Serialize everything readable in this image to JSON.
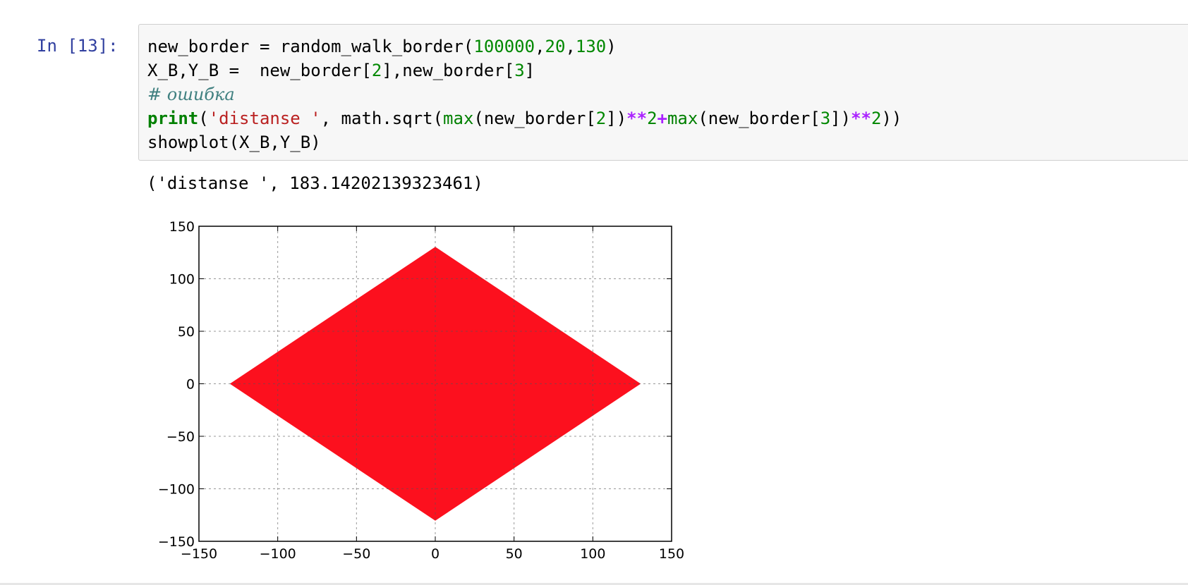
{
  "cell": {
    "prompt": "In [13]:",
    "code_lines": [
      [
        {
          "t": "new_border = random_walk_border(",
          "c": ""
        },
        {
          "t": "100000",
          "c": "num"
        },
        {
          "t": ",",
          "c": ""
        },
        {
          "t": "20",
          "c": "num"
        },
        {
          "t": ",",
          "c": ""
        },
        {
          "t": "130",
          "c": "num"
        },
        {
          "t": ")",
          "c": ""
        }
      ],
      [
        {
          "t": "X_B,Y_B =  new_border[",
          "c": ""
        },
        {
          "t": "2",
          "c": "num"
        },
        {
          "t": "],new_border[",
          "c": ""
        },
        {
          "t": "3",
          "c": "num"
        },
        {
          "t": "]",
          "c": ""
        }
      ],
      [
        {
          "t": "# ошибка",
          "c": "comment"
        }
      ],
      [
        {
          "t": "print",
          "c": "kw"
        },
        {
          "t": "(",
          "c": ""
        },
        {
          "t": "'distanse '",
          "c": "str"
        },
        {
          "t": ", math.sqrt(",
          "c": ""
        },
        {
          "t": "max",
          "c": "builtin"
        },
        {
          "t": "(new_border[",
          "c": ""
        },
        {
          "t": "2",
          "c": "num"
        },
        {
          "t": "])",
          "c": ""
        },
        {
          "t": "**",
          "c": "op"
        },
        {
          "t": "2",
          "c": "num"
        },
        {
          "t": "+",
          "c": "op"
        },
        {
          "t": "max",
          "c": "builtin"
        },
        {
          "t": "(new_border[",
          "c": ""
        },
        {
          "t": "3",
          "c": "num"
        },
        {
          "t": "])",
          "c": ""
        },
        {
          "t": "**",
          "c": "op"
        },
        {
          "t": "2",
          "c": "num"
        },
        {
          "t": "))",
          "c": ""
        }
      ],
      [
        {
          "t": "showplot(X_B,Y_B)",
          "c": ""
        }
      ]
    ],
    "output_text": "('distanse ', 183.14202139323461)"
  },
  "colors": {
    "fill": "#fc101e",
    "prompt": "#303f9f"
  },
  "chart_data": {
    "type": "area",
    "title": "",
    "xlabel": "",
    "ylabel": "",
    "xlim": [
      -150,
      150
    ],
    "ylim": [
      -150,
      150
    ],
    "xticks": [
      -150,
      -100,
      -50,
      0,
      50,
      100,
      150
    ],
    "yticks": [
      -150,
      -100,
      -50,
      0,
      50,
      100,
      150
    ],
    "xtick_labels": [
      "−150",
      "−100",
      "−50",
      "0",
      "50",
      "100",
      "150"
    ],
    "ytick_labels": [
      "−150",
      "−100",
      "−50",
      "0",
      "50",
      "100",
      "150"
    ],
    "grid": true,
    "grid_style": "dashed",
    "legend": false,
    "series": [
      {
        "polygon": [
          [
            0,
            130
          ],
          [
            130,
            0
          ],
          [
            0,
            -130
          ],
          [
            -130,
            0
          ]
        ]
      }
    ]
  }
}
